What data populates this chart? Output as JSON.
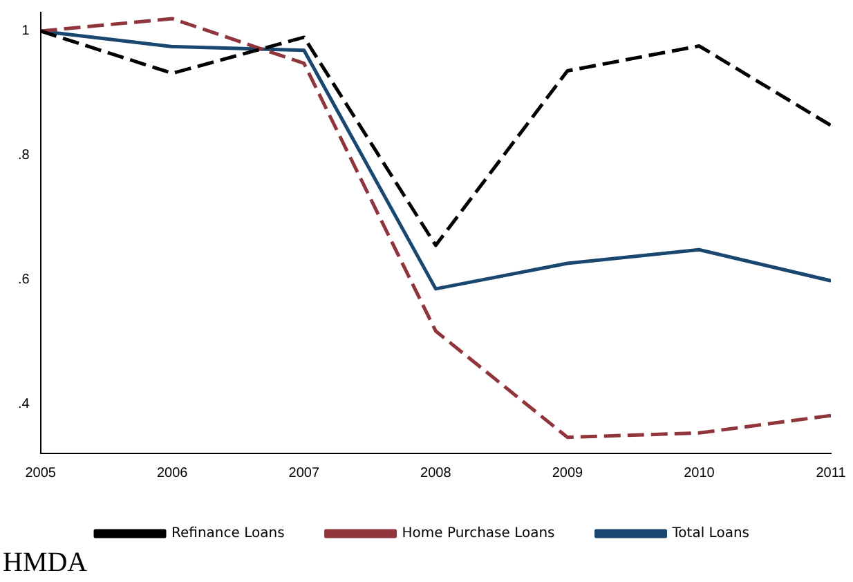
{
  "chart_data": {
    "type": "line",
    "x": [
      2005,
      2006,
      2007,
      2008,
      2009,
      2010,
      2011
    ],
    "xlim": [
      2005,
      2011
    ],
    "xticks": [
      2005,
      2006,
      2007,
      2008,
      2009,
      2010,
      2011
    ],
    "ylim": [
      0.32,
      1.03
    ],
    "yticks": [
      {
        "value": 0.4,
        "label": ".4"
      },
      {
        "value": 0.6,
        "label": ".6"
      },
      {
        "value": 0.8,
        "label": ".8"
      },
      {
        "value": 1,
        "label": "1"
      }
    ],
    "series": [
      {
        "name": "Total Loans",
        "color": "#1a476f",
        "line_style": "solid",
        "values": [
          1.0,
          0.975,
          0.969,
          0.585,
          0.626,
          0.648,
          0.598
        ]
      },
      {
        "name": "Home Purchase Loans",
        "color": "#90353b",
        "line_style": "dashed",
        "values": [
          1.0,
          1.02,
          0.948,
          0.517,
          0.346,
          0.353,
          0.381
        ]
      },
      {
        "name": "Refinance Loans",
        "color": "#000000",
        "line_style": "dashed",
        "values": [
          1.0,
          0.932,
          0.99,
          0.655,
          0.936,
          0.976,
          0.848
        ]
      }
    ],
    "marker": "none",
    "legend": "bottom",
    "annotations": [
      "HMDA"
    ]
  }
}
